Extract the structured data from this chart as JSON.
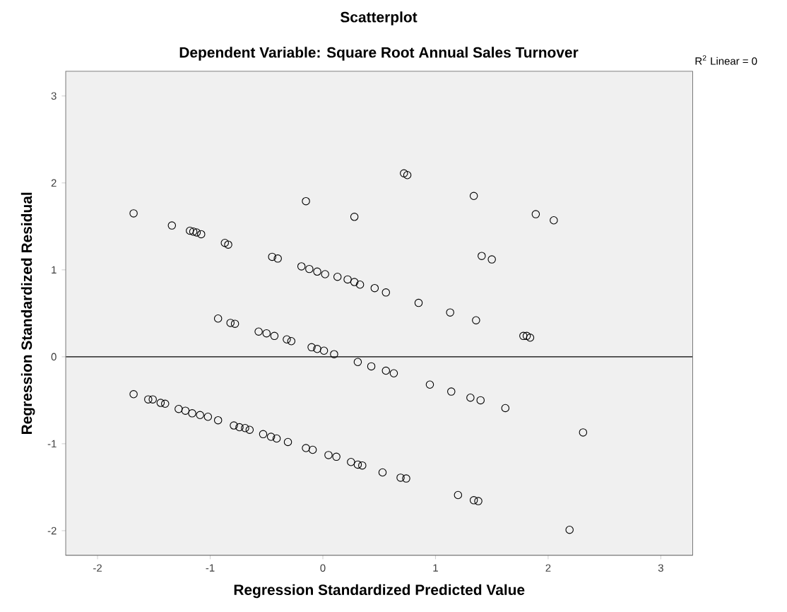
{
  "chart_data": {
    "type": "scatter",
    "title": "Scatterplot",
    "subtitle": "Dependent Variable: Square Root Annual Sales Turnover",
    "xlabel": "Regression Standardized Predicted Value",
    "ylabel": "Regression Standardized Residual",
    "annotations": [
      "R$^{2}$ Linear = 0"
    ],
    "xlim": [
      -2.28,
      3.28
    ],
    "ylim": [
      -2.28,
      3.28
    ],
    "xticks": [
      -2,
      -1,
      0,
      1,
      2,
      3
    ],
    "yticks": [
      -2,
      -1,
      0,
      1,
      2,
      3
    ],
    "marker": "circle",
    "ref_lines": [
      {
        "axis": "y",
        "value": 0,
        "color": "#000000"
      }
    ],
    "series": [
      {
        "color": "#000000",
        "x": [
          -1.68,
          -1.34,
          -1.18,
          -1.15,
          -1.12,
          -1.08,
          -0.87,
          -0.84,
          -0.45,
          -0.4,
          -0.19,
          -0.12,
          -0.05,
          0.02,
          0.13,
          0.22,
          0.28,
          0.33,
          0.46,
          0.56,
          0.85,
          1.13,
          1.36,
          1.78,
          1.81,
          1.84,
          -0.15,
          0.28,
          0.72,
          0.75,
          1.34,
          1.89,
          2.05,
          1.41,
          1.5,
          -0.93,
          -0.82,
          -0.78,
          -0.57,
          -0.5,
          -0.43,
          -0.32,
          -0.28,
          -0.1,
          -0.05,
          0.01,
          0.1,
          0.31,
          0.43,
          0.56,
          0.63,
          0.95,
          1.14,
          1.31,
          1.4,
          1.62,
          2.31,
          -1.68,
          -1.55,
          -1.51,
          -1.44,
          -1.4,
          -1.28,
          -1.22,
          -1.16,
          -1.09,
          -1.02,
          -0.93,
          -0.79,
          -0.74,
          -0.69,
          -0.65,
          -0.53,
          -0.46,
          -0.41,
          -0.31,
          -0.15,
          -0.09,
          0.05,
          0.12,
          0.25,
          0.31,
          0.35,
          0.53,
          0.69,
          0.74,
          1.2,
          1.34,
          1.38,
          2.19
        ],
        "values": [
          1.65,
          1.51,
          1.45,
          1.44,
          1.43,
          1.41,
          1.31,
          1.29,
          1.15,
          1.13,
          1.04,
          1.01,
          0.98,
          0.95,
          0.92,
          0.89,
          0.86,
          0.83,
          0.79,
          0.74,
          0.62,
          0.51,
          0.42,
          0.24,
          0.24,
          0.22,
          1.79,
          1.61,
          2.11,
          2.09,
          1.85,
          1.64,
          1.57,
          1.16,
          1.12,
          0.44,
          0.39,
          0.38,
          0.29,
          0.27,
          0.24,
          0.2,
          0.18,
          0.11,
          0.09,
          0.07,
          0.03,
          -0.06,
          -0.11,
          -0.16,
          -0.19,
          -0.32,
          -0.4,
          -0.47,
          -0.5,
          -0.59,
          -0.87,
          -0.43,
          -0.49,
          -0.49,
          -0.53,
          -0.54,
          -0.6,
          -0.62,
          -0.65,
          -0.67,
          -0.69,
          -0.73,
          -0.79,
          -0.81,
          -0.82,
          -0.84,
          -0.89,
          -0.92,
          -0.94,
          -0.98,
          -1.05,
          -1.07,
          -1.13,
          -1.15,
          -1.21,
          -1.24,
          -1.25,
          -1.33,
          -1.39,
          -1.4,
          -1.59,
          -1.65,
          -1.66,
          -1.99
        ]
      }
    ]
  }
}
